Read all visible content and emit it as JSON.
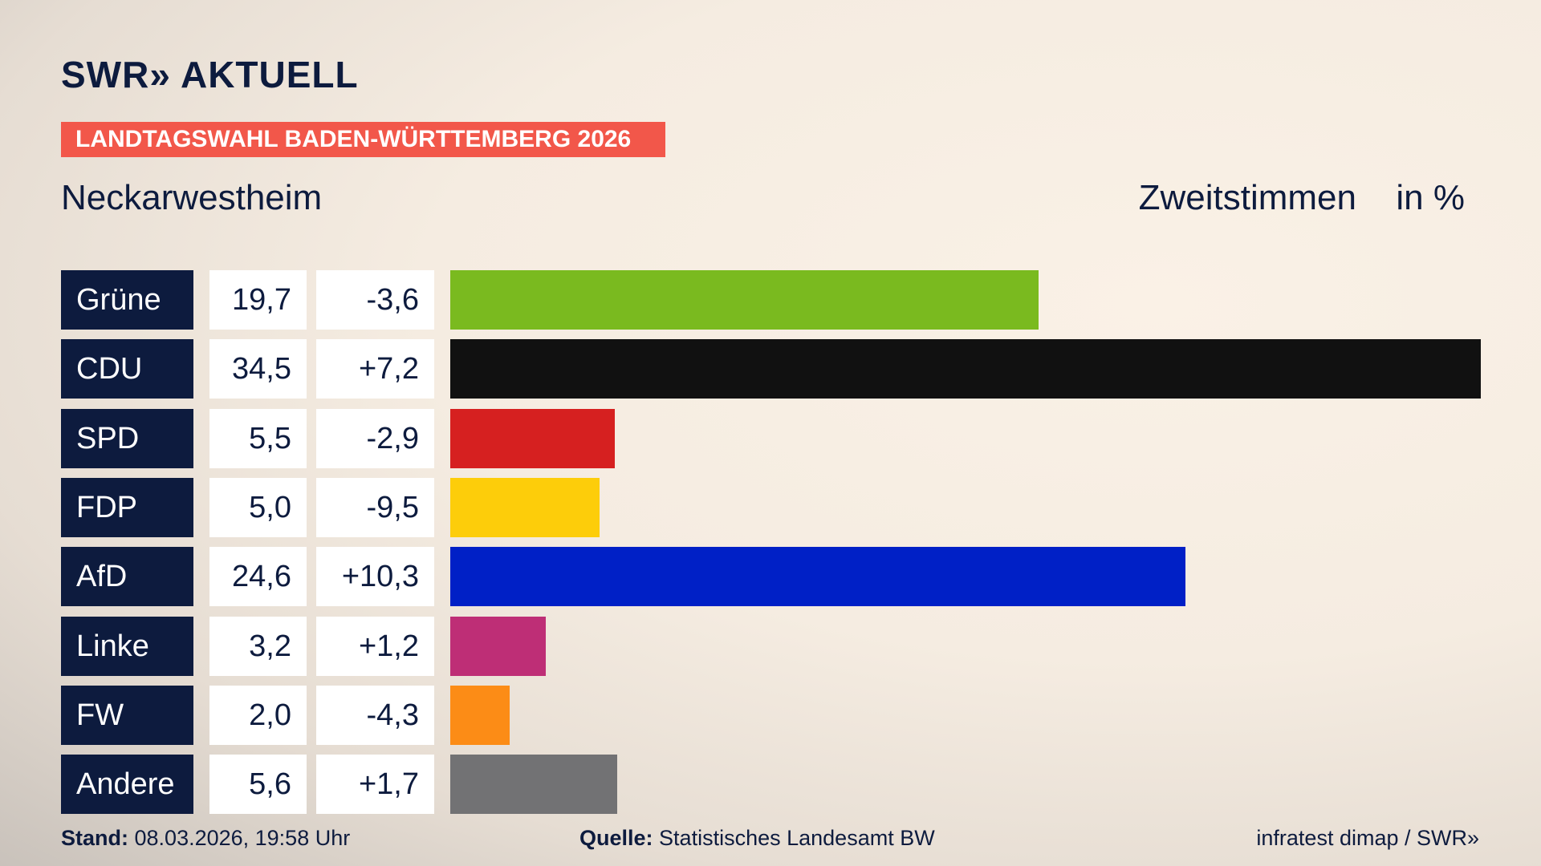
{
  "header": {
    "brand": "SWR» AKTUELL",
    "tag": "LANDTAGSWAHL BADEN-WÜRTTEMBERG 2026",
    "place": "Neckarwestheim",
    "measure": "Zweitstimmen",
    "unit": "in %"
  },
  "chart_data": {
    "type": "bar",
    "orientation": "horizontal",
    "categories": [
      "Grüne",
      "CDU",
      "SPD",
      "FDP",
      "AfD",
      "Linke",
      "FW",
      "Andere"
    ],
    "values": [
      19.7,
      34.5,
      5.5,
      5.0,
      24.6,
      3.2,
      2.0,
      5.6
    ],
    "value_labels": [
      "19,7",
      "34,5",
      "5,5",
      "5,0",
      "24,6",
      "3,2",
      "2,0",
      "5,6"
    ],
    "changes": [
      -3.6,
      7.2,
      -2.9,
      -9.5,
      10.3,
      1.2,
      -4.3,
      1.7
    ],
    "change_labels": [
      "-3,6",
      "+7,2",
      "-2,9",
      "-9,5",
      "+10,3",
      "+1,2",
      "-4,3",
      "+1,7"
    ],
    "colors": [
      "#7aba1f",
      "#111111",
      "#d62020",
      "#fdcd0a",
      "#0020c6",
      "#be2e76",
      "#fc8c16",
      "#727274"
    ]
  },
  "footer": {
    "stand_label": "Stand:",
    "stand": "08.03.2026, 19:58 Uhr",
    "source_label": "Quelle:",
    "source": "Statistisches Landesamt BW",
    "credit": "infratest dimap / SWR»"
  }
}
